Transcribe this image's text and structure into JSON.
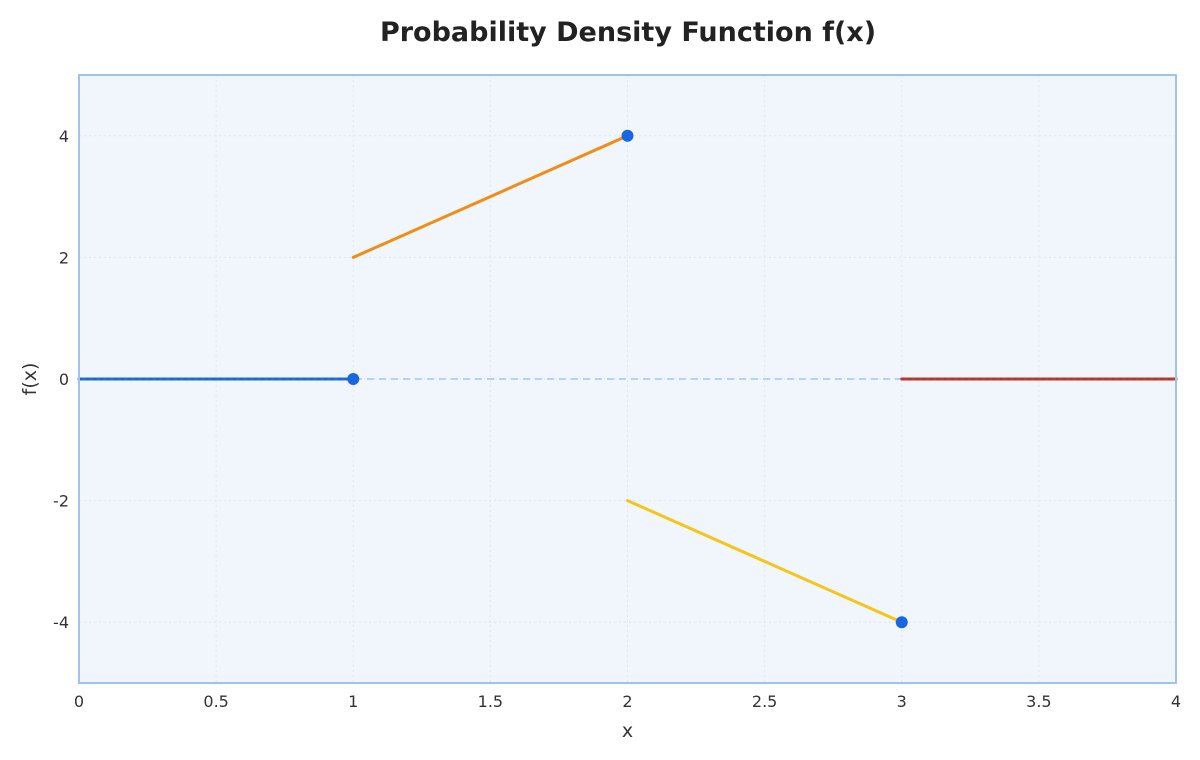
{
  "chart_data": {
    "type": "line",
    "title": "Probability Density Function f(x)",
    "xlabel": "x",
    "ylabel": "f(x)",
    "xlim": [
      0,
      4
    ],
    "ylim": [
      -5,
      5
    ],
    "x_ticks": [
      0,
      0.5,
      1,
      1.5,
      2,
      2.5,
      3,
      3.5,
      4
    ],
    "x_tick_labels": [
      "0",
      "0.5",
      "1",
      "1.5",
      "2",
      "2.5",
      "3",
      "3.5",
      "4"
    ],
    "y_ticks": [
      -4,
      -2,
      0,
      2,
      4
    ],
    "y_tick_labels": [
      "-4",
      "-2",
      "0",
      "2",
      "4"
    ],
    "grid": true,
    "legend": "none",
    "series": [
      {
        "x": [
          0,
          1
        ],
        "y": [
          0,
          0
        ],
        "color": "#1f6fd6"
      },
      {
        "x": [
          1,
          2
        ],
        "y": [
          2,
          4
        ],
        "color": "#f28c13"
      },
      {
        "x": [
          2,
          3
        ],
        "y": [
          -2,
          -4
        ],
        "color": "#f5c518"
      },
      {
        "x": [
          3,
          4
        ],
        "y": [
          0,
          0
        ],
        "color": "#c0392b"
      }
    ],
    "reference_line": {
      "y": 0,
      "x": [
        0,
        4
      ],
      "style": "dashed",
      "color": "#b8d0f2"
    },
    "points": [
      {
        "x": 1,
        "y": 0
      },
      {
        "x": 2,
        "y": 4
      },
      {
        "x": 3,
        "y": -4
      }
    ],
    "point_color": "#1a66e0",
    "plot_background": "#f1f6fc",
    "frame_color": "#9fc2ee"
  }
}
